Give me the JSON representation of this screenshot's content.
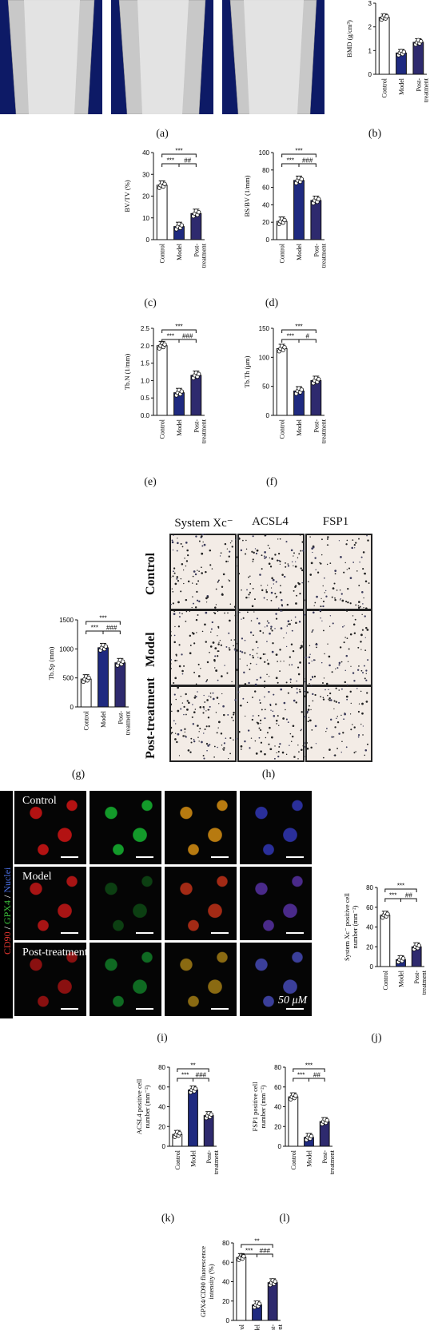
{
  "panel_labels": {
    "a": "(a)",
    "b": "(b)",
    "c": "(c)",
    "d": "(d)",
    "e": "(e)",
    "f": "(f)",
    "g": "(g)",
    "h": "(h)",
    "i": "(i)",
    "j": "(j)",
    "k": "(k)",
    "l": "(l)"
  },
  "groups": [
    "Control",
    "Model",
    "Post-\ntreatment"
  ],
  "ihc": {
    "columns": [
      "System Xc⁻",
      "ACSL4",
      "FSP1"
    ],
    "rows": [
      "Control",
      "Model",
      "Post-treatment"
    ]
  },
  "if_panel": {
    "rows": [
      "Control",
      "Model",
      "Post-treatment"
    ],
    "side_label_parts": [
      "CD90",
      "/",
      "GPX4",
      "/",
      "Nuclei"
    ],
    "scale_text": "50 μM"
  },
  "colors": {
    "control": "#ffffff",
    "model": "#1f2a80",
    "post": "#2e2a6e",
    "microct_bg": "#0d1a66"
  },
  "chart_data": [
    {
      "id": "b",
      "type": "bar",
      "ylabel": "BMD (g/cm³)",
      "categories": [
        "Control",
        "Model",
        "Post-treatment"
      ],
      "values": [
        2.4,
        0.9,
        1.35
      ],
      "ylim": [
        0,
        3
      ],
      "yticks": [
        0,
        1,
        2,
        3
      ],
      "annotations": []
    },
    {
      "id": "c",
      "type": "bar",
      "ylabel": "BV/TV (%)",
      "categories": [
        "Control",
        "Model",
        "Post-treatment"
      ],
      "values": [
        25,
        6,
        12
      ],
      "ylim": [
        0,
        40
      ],
      "yticks": [
        0,
        10,
        20,
        30,
        40
      ],
      "annotations": [
        "***",
        "***",
        "##"
      ]
    },
    {
      "id": "d",
      "type": "bar",
      "ylabel": "BS/BV (1/mm)",
      "categories": [
        "Control",
        "Model",
        "Post-treatment"
      ],
      "values": [
        21,
        68,
        45
      ],
      "ylim": [
        0,
        100
      ],
      "yticks": [
        0,
        20,
        40,
        60,
        80,
        100
      ],
      "annotations": [
        "***",
        "***",
        "###"
      ]
    },
    {
      "id": "e",
      "type": "bar",
      "ylabel": "Tb.N (1/mm)",
      "categories": [
        "Control",
        "Model",
        "Post-treatment"
      ],
      "values": [
        2.0,
        0.65,
        1.15
      ],
      "ylim": [
        0,
        2.5
      ],
      "yticks": [
        "0.0",
        "0.5",
        "1.0",
        "1.5",
        "2.0",
        "2.5"
      ],
      "annotations": [
        "***",
        "***",
        "###"
      ]
    },
    {
      "id": "f",
      "type": "bar",
      "ylabel": "Tb.Th (μm)",
      "categories": [
        "Control",
        "Model",
        "Post-treatment"
      ],
      "values": [
        115,
        42,
        60
      ],
      "ylim": [
        0,
        150
      ],
      "yticks": [
        0,
        50,
        100,
        150
      ],
      "annotations": [
        "***",
        "***",
        "#"
      ]
    },
    {
      "id": "g",
      "type": "bar",
      "ylabel": "Tb.Sp (mm)",
      "categories": [
        "Control",
        "Model",
        "Post-treatment"
      ],
      "values": [
        480,
        1020,
        760
      ],
      "ylim": [
        0,
        1500
      ],
      "yticks": [
        0,
        500,
        1000,
        1500
      ],
      "annotations": [
        "***",
        "***",
        "###"
      ]
    },
    {
      "id": "j",
      "type": "bar",
      "ylabel": "System Xc⁻ positive cell\nnumber (mm⁻²)",
      "categories": [
        "Control",
        "Model",
        "Post-treatment"
      ],
      "values": [
        52,
        7,
        20
      ],
      "ylim": [
        0,
        80
      ],
      "yticks": [
        0,
        20,
        40,
        60,
        80
      ],
      "annotations": [
        "***",
        "***",
        "##"
      ]
    },
    {
      "id": "k",
      "type": "bar",
      "ylabel": "ACSL4 positive cell\nnumber (mm⁻²)",
      "categories": [
        "Control",
        "Model",
        "Post-treatment"
      ],
      "values": [
        12,
        57,
        31
      ],
      "ylim": [
        0,
        80
      ],
      "yticks": [
        0,
        20,
        40,
        60,
        80
      ],
      "annotations": [
        "**",
        "***",
        "###"
      ]
    },
    {
      "id": "l",
      "type": "bar",
      "ylabel": "FSP1 positive cell\nnumber (mm⁻²)",
      "categories": [
        "Control",
        "Model",
        "Post-treatment"
      ],
      "values": [
        50,
        9,
        25
      ],
      "ylim": [
        0,
        80
      ],
      "yticks": [
        0,
        20,
        40,
        60,
        80
      ],
      "annotations": [
        "***",
        "***",
        "##"
      ]
    },
    {
      "id": "m",
      "type": "bar",
      "ylabel": "GPX4/CD90 fluorescence\nintensity (%)",
      "categories": [
        "Control",
        "Model",
        "Post-treatment"
      ],
      "values": [
        65,
        16,
        39
      ],
      "ylim": [
        0,
        80
      ],
      "yticks": [
        0,
        20,
        40,
        60,
        80
      ],
      "annotations": [
        "**",
        "***",
        "###"
      ]
    }
  ]
}
